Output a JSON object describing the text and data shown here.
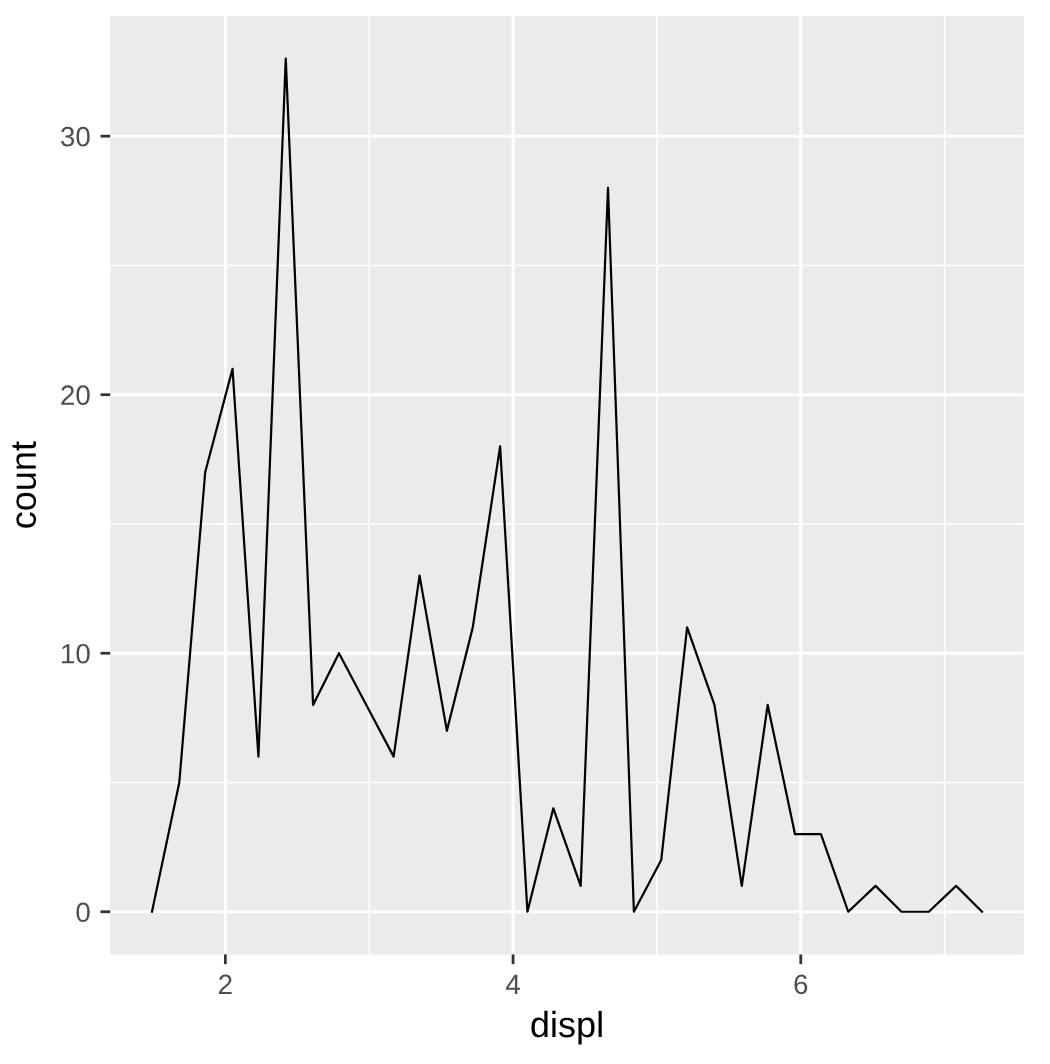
{
  "chart_data": {
    "type": "line",
    "xlabel": "displ",
    "ylabel": "count",
    "x": [
      1.49,
      1.68,
      1.86,
      2.05,
      2.23,
      2.42,
      2.61,
      2.79,
      2.98,
      3.17,
      3.35,
      3.54,
      3.72,
      3.91,
      4.1,
      4.28,
      4.47,
      4.66,
      4.84,
      5.03,
      5.21,
      5.4,
      5.59,
      5.77,
      5.96,
      6.14,
      6.33,
      6.52,
      6.7,
      6.89,
      7.08,
      7.26
    ],
    "series": [
      {
        "color": "#000000",
        "values": [
          0,
          5,
          17,
          21,
          6,
          33,
          8,
          10,
          8,
          6,
          13,
          7,
          11,
          18,
          0,
          4,
          1,
          28,
          0,
          2,
          11,
          8,
          1,
          8,
          3,
          3,
          0,
          1,
          0,
          0,
          1,
          0
        ]
      }
    ],
    "xlim": [
      1.2,
      7.55
    ],
    "ylim": [
      -1.65,
      34.65
    ],
    "xticks": [
      2,
      4,
      6
    ],
    "yticks": [
      0,
      10,
      20,
      30
    ],
    "grid": true,
    "marker": "none",
    "line_style": "solid"
  }
}
